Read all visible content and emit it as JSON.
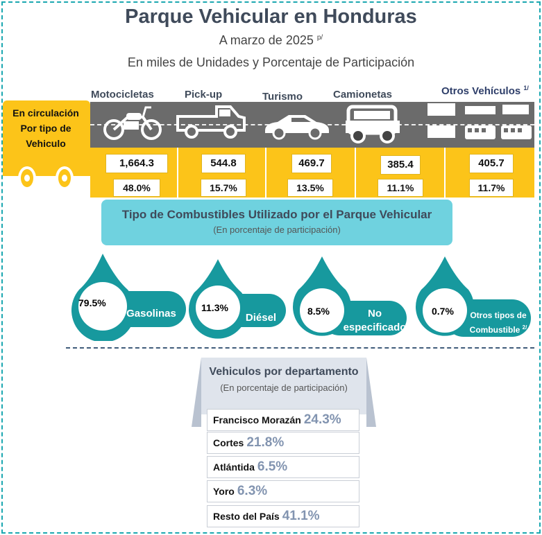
{
  "header": {
    "title": "Parque Vehicular en Honduras",
    "subtitle_date": "A marzo de 2025",
    "subtitle_note": "p/",
    "subtitle_units": "En miles de Unidades y Porcentaje de Participación"
  },
  "truck_label": [
    "En circulación",
    "Por tipo de",
    "Vehiculo"
  ],
  "vehicles": [
    {
      "label": "Motocicletas",
      "value": "1,664.3",
      "pct": "48.0%",
      "icon": "motorcycle-icon"
    },
    {
      "label": "Pick-up",
      "value": "544.8",
      "pct": "15.7%",
      "icon": "pickup-icon"
    },
    {
      "label": "Turismo",
      "value": "469.7",
      "pct": "13.5%",
      "icon": "sedan-car-icon"
    },
    {
      "label": "Camionetas",
      "value": "385.4",
      "pct": "11.1%",
      "icon": "suv-icon"
    },
    {
      "label": "Otros Vehículos",
      "note": "1/",
      "value": "405.7",
      "pct": "11.7%",
      "icon": "other-vehicles-icon"
    }
  ],
  "fuel": {
    "title": "Tipo de Combustibles Utilizado por el Parque Vehicular",
    "subtitle": "(En porcentaje de participación)",
    "items": [
      {
        "pct": "79.5%",
        "label": "Gasolinas"
      },
      {
        "pct": "11.3%",
        "label": "Diésel"
      },
      {
        "pct": "8.5%",
        "label1": "No",
        "label2": "especificado"
      },
      {
        "pct": "0.7%",
        "label1": "Otros tipos de",
        "label2": "Combustible",
        "note": "2/"
      }
    ]
  },
  "departments": {
    "title": "Vehiculos por departamento",
    "subtitle": "(En porcentaje de participación)",
    "rows": [
      {
        "name": "Francisco Morazán",
        "pct": "24.3%"
      },
      {
        "name": "Cortes",
        "pct": "21.8%"
      },
      {
        "name": "Atlántida",
        "pct": "6.5%"
      },
      {
        "name": "Yoro",
        "pct": "6.3%"
      },
      {
        "name": "Resto del País",
        "pct": "41.1%"
      }
    ]
  },
  "colors": {
    "yellow": "#fcc419",
    "teal": "#17999e",
    "light_teal": "#6fd2df",
    "slate": "#3f4a5a",
    "dept_pct": "#8294b0"
  }
}
